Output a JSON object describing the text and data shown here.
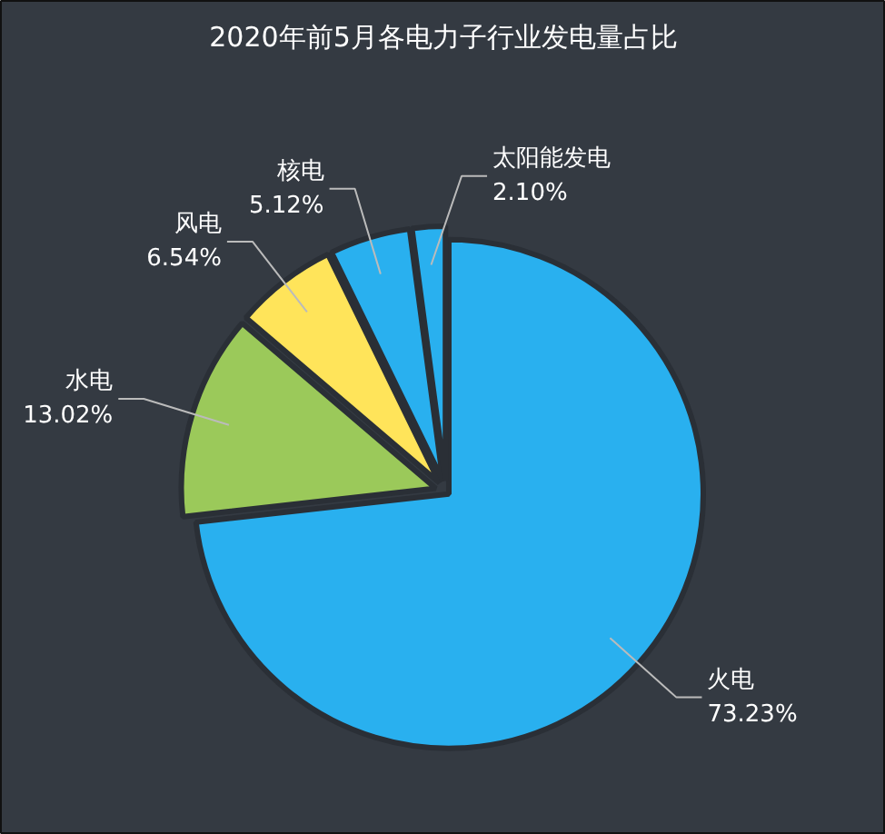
{
  "chart_data": {
    "type": "pie",
    "title": "2020年前5月各电力子行业发电量占比",
    "categories": [
      "火电",
      "水电",
      "风电",
      "核电",
      "太阳能发电"
    ],
    "values": [
      73.23,
      13.02,
      6.54,
      5.12,
      2.1
    ],
    "value_labels": [
      "73.23%",
      "13.02%",
      "6.54%",
      "5.12%",
      "2.10%"
    ],
    "colors": [
      "#29b0ef",
      "#9bc95a",
      "#ffe45a",
      "#29b0ef",
      "#29b0ef"
    ]
  }
}
